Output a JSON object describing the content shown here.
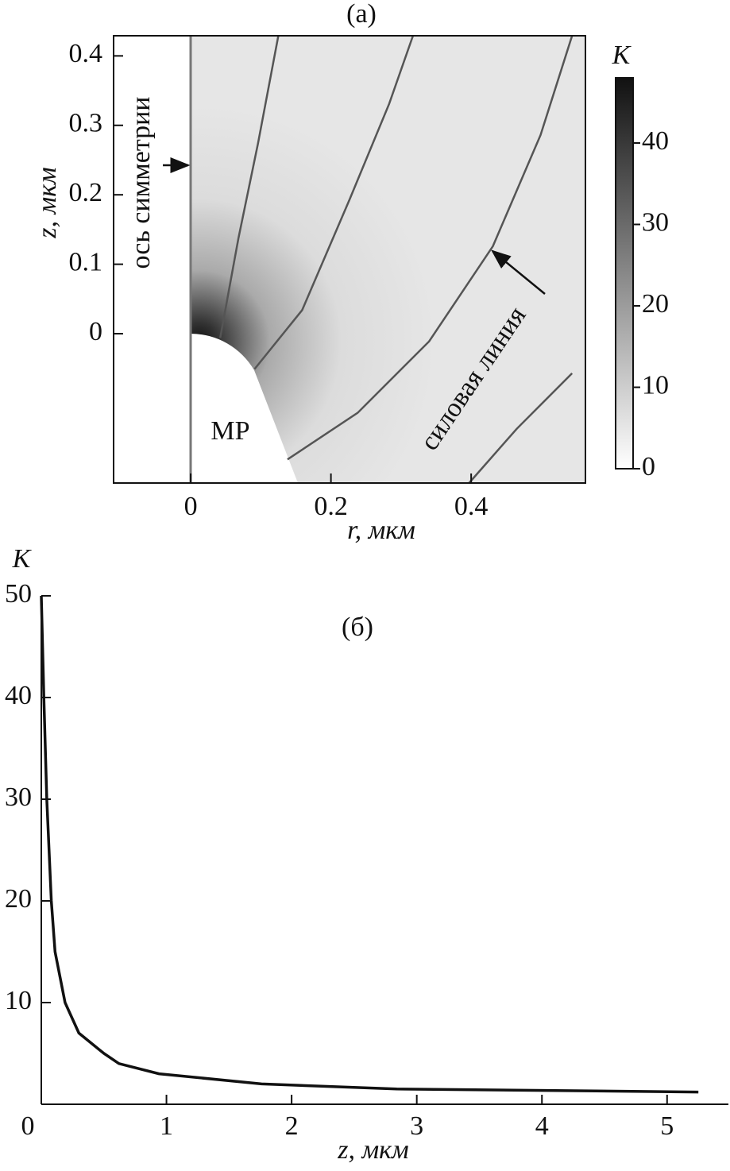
{
  "chart_data": [
    {
      "type": "field",
      "title": "(a)",
      "xlabel": "r, мкм",
      "ylabel": "z, мкм",
      "xlim": [
        -0.11,
        0.563
      ],
      "ylim": [
        -0.215,
        0.429
      ],
      "xticks": [
        0,
        0.2,
        0.4
      ],
      "yticks": [
        0,
        0.1,
        0.2,
        0.3,
        0.4
      ],
      "colorbar": {
        "label": "K",
        "lim": [
          0,
          48
        ],
        "ticks": [
          0,
          10,
          20,
          30,
          40
        ]
      },
      "line_color": "#555",
      "lines": [
        {
          "x": [
            0.042,
            0.068,
            0.096,
            0.125
          ],
          "y": [
            -0.006,
            0.137,
            0.274,
            0.429
          ]
        },
        {
          "x": [
            0.091,
            0.159,
            0.227,
            0.283,
            0.317
          ],
          "y": [
            -0.051,
            0.034,
            0.194,
            0.331,
            0.429
          ]
        },
        {
          "x": [
            0.138,
            0.238,
            0.34,
            0.431,
            0.499,
            0.544
          ],
          "y": [
            -0.181,
            -0.114,
            -0.011,
            0.126,
            0.286,
            0.429
          ]
        },
        {
          "x": [
            0.397,
            0.465,
            0.544
          ],
          "y": [
            -0.215,
            -0.137,
            -0.057
          ]
        }
      ],
      "annotations": [
        "ось симметрии",
        "силовая линия",
        "MP"
      ]
    },
    {
      "type": "line",
      "title": "(б)",
      "xlabel": "z, мкм",
      "ylabel": "K",
      "xlim": [
        0,
        5.49
      ],
      "ylim": [
        0,
        50
      ],
      "xticks": [
        0,
        1,
        2,
        3,
        4,
        5
      ],
      "yticks": [
        10,
        20,
        30,
        40,
        50
      ],
      "series": [
        {
          "color": "#111",
          "x": [
            0,
            0.02,
            0.044,
            0.08,
            0.11,
            0.19,
            0.3,
            0.5,
            0.62,
            0.94,
            1.76,
            2.84,
            5.25
          ],
          "values": [
            50,
            40,
            30,
            20,
            15,
            10,
            7,
            5,
            4,
            3,
            2,
            1.5,
            1.2
          ]
        }
      ]
    }
  ]
}
